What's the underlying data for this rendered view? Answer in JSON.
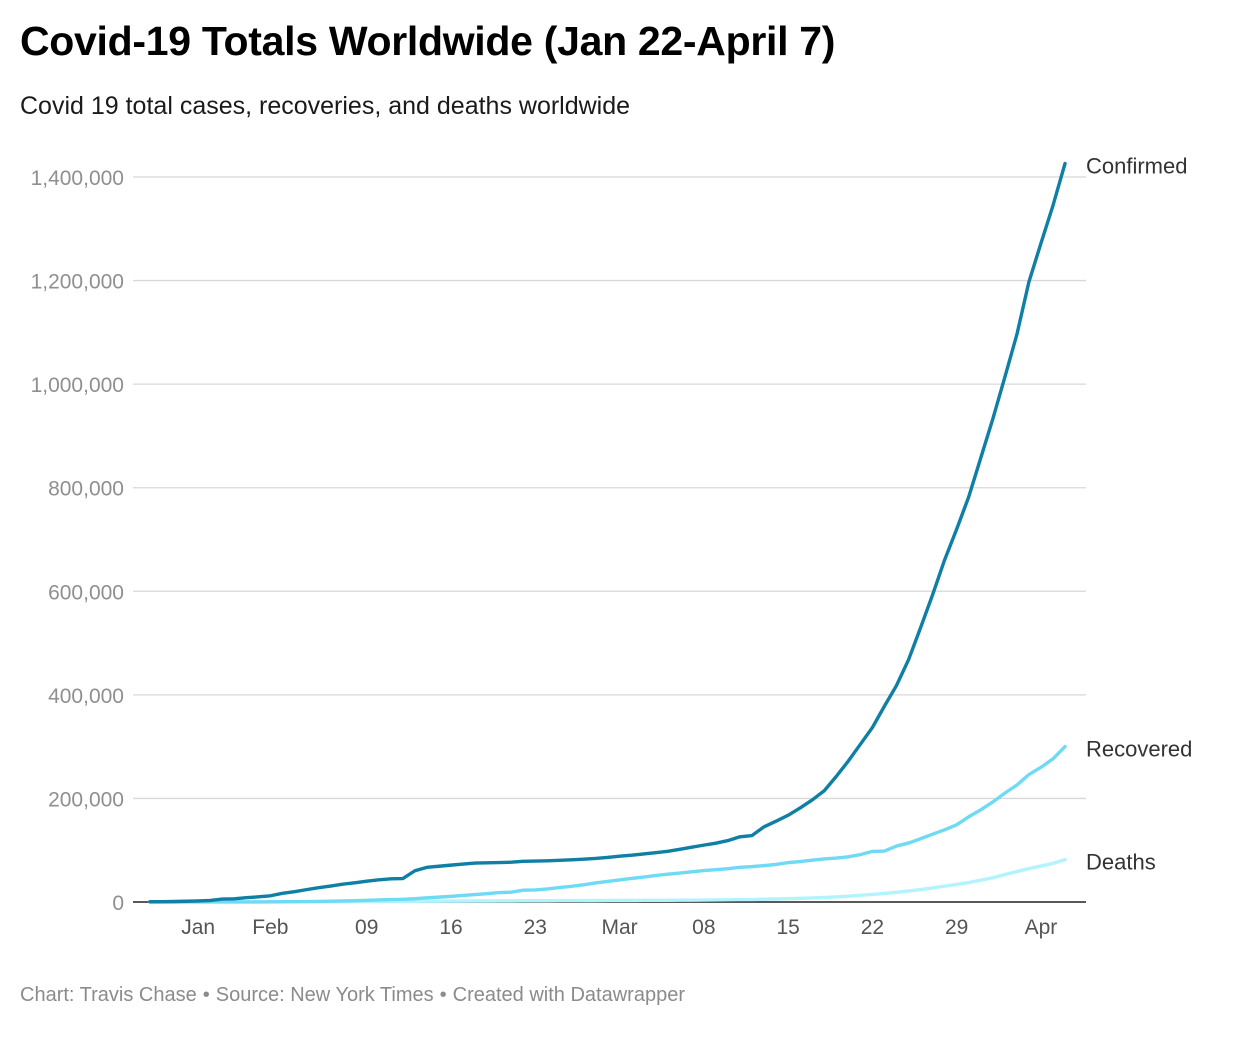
{
  "title": "Covid-19 Totals Worldwide (Jan 22-April 7)",
  "subtitle": "Covid 19 total cases, recoveries, and deaths worldwide",
  "footer": {
    "chart_by": "Chart: Travis Chase",
    "source": "Source: New York Times",
    "created_with": "Created with Datawrapper",
    "separator": "•"
  },
  "colors": {
    "confirmed": "#0f7fa5",
    "recovered": "#6fdaf3",
    "deaths": "#b1f4fd",
    "grid": "#d8d8d8",
    "axis_text": "#8f8f8f",
    "label_text": "#333333"
  },
  "chart_data": {
    "type": "line",
    "title": "Covid-19 Totals Worldwide (Jan 22-April 7)",
    "subtitle": "Covid 19 total cases, recoveries, and deaths worldwide",
    "xlabel": "",
    "ylabel": "",
    "ylim": [
      0,
      1400000
    ],
    "grid": true,
    "legend": "direct labels at line ends (right)",
    "y_ticks": [
      0,
      200000,
      400000,
      600000,
      800000,
      1000000,
      1200000,
      1400000
    ],
    "y_tick_labels": [
      "0",
      "200,000",
      "400,000",
      "600,000",
      "800,000",
      "1,000,000",
      "1,200,000",
      "1,400,000"
    ],
    "x_ticks": [
      {
        "label": "Jan",
        "date": "2020-01-26"
      },
      {
        "label": "Feb",
        "date": "2020-02-01"
      },
      {
        "label": "09",
        "date": "2020-02-09"
      },
      {
        "label": "16",
        "date": "2020-02-16"
      },
      {
        "label": "23",
        "date": "2020-02-23"
      },
      {
        "label": "Mar",
        "date": "2020-03-01"
      },
      {
        "label": "08",
        "date": "2020-03-08"
      },
      {
        "label": "15",
        "date": "2020-03-15"
      },
      {
        "label": "22",
        "date": "2020-03-22"
      },
      {
        "label": "29",
        "date": "2020-03-29"
      },
      {
        "label": "Apr",
        "date": "2020-04-05"
      }
    ],
    "series": [
      {
        "name": "Confirmed",
        "color": "#0f7fa5",
        "points": [
          [
            "2020-01-22",
            555
          ],
          [
            "2020-01-23",
            654
          ],
          [
            "2020-01-24",
            941
          ],
          [
            "2020-01-25",
            1434
          ],
          [
            "2020-01-26",
            2118
          ],
          [
            "2020-01-27",
            2927
          ],
          [
            "2020-01-28",
            5578
          ],
          [
            "2020-01-29",
            6166
          ],
          [
            "2020-01-30",
            8234
          ],
          [
            "2020-01-31",
            9927
          ],
          [
            "2020-02-01",
            12038
          ],
          [
            "2020-02-02",
            16787
          ],
          [
            "2020-02-03",
            19881
          ],
          [
            "2020-02-04",
            23892
          ],
          [
            "2020-02-05",
            27635
          ],
          [
            "2020-02-06",
            30794
          ],
          [
            "2020-02-07",
            34391
          ],
          [
            "2020-02-08",
            37120
          ],
          [
            "2020-02-09",
            40150
          ],
          [
            "2020-02-10",
            42762
          ],
          [
            "2020-02-11",
            44802
          ],
          [
            "2020-02-12",
            45221
          ],
          [
            "2020-02-13",
            60368
          ],
          [
            "2020-02-14",
            66885
          ],
          [
            "2020-02-15",
            69030
          ],
          [
            "2020-02-16",
            71224
          ],
          [
            "2020-02-17",
            73258
          ],
          [
            "2020-02-18",
            75136
          ],
          [
            "2020-02-19",
            75639
          ],
          [
            "2020-02-20",
            76197
          ],
          [
            "2020-02-21",
            76819
          ],
          [
            "2020-02-22",
            78572
          ],
          [
            "2020-02-23",
            78958
          ],
          [
            "2020-02-24",
            79561
          ],
          [
            "2020-02-25",
            80406
          ],
          [
            "2020-02-26",
            81388
          ],
          [
            "2020-02-27",
            82746
          ],
          [
            "2020-02-28",
            84112
          ],
          [
            "2020-02-29",
            86011
          ],
          [
            "2020-03-01",
            88369
          ],
          [
            "2020-03-02",
            90306
          ],
          [
            "2020-03-03",
            92840
          ],
          [
            "2020-03-04",
            95120
          ],
          [
            "2020-03-05",
            97886
          ],
          [
            "2020-03-06",
            101801
          ],
          [
            "2020-03-07",
            105847
          ],
          [
            "2020-03-08",
            109821
          ],
          [
            "2020-03-09",
            113590
          ],
          [
            "2020-03-10",
            118620
          ],
          [
            "2020-03-11",
            125875
          ],
          [
            "2020-03-12",
            128352
          ],
          [
            "2020-03-13",
            145205
          ],
          [
            "2020-03-14",
            156101
          ],
          [
            "2020-03-15",
            167454
          ],
          [
            "2020-03-16",
            181574
          ],
          [
            "2020-03-17",
            197102
          ],
          [
            "2020-03-18",
            214821
          ],
          [
            "2020-03-19",
            242570
          ],
          [
            "2020-03-20",
            272208
          ],
          [
            "2020-03-21",
            304507
          ],
          [
            "2020-03-22",
            336953
          ],
          [
            "2020-03-23",
            378235
          ],
          [
            "2020-03-24",
            418045
          ],
          [
            "2020-03-25",
            467653
          ],
          [
            "2020-03-26",
            529591
          ],
          [
            "2020-03-27",
            593291
          ],
          [
            "2020-03-28",
            660706
          ],
          [
            "2020-03-29",
            720117
          ],
          [
            "2020-03-30",
            782365
          ],
          [
            "2020-03-31",
            857487
          ],
          [
            "2020-04-01",
            932605
          ],
          [
            "2020-04-02",
            1013466
          ],
          [
            "2020-04-03",
            1095917
          ],
          [
            "2020-04-04",
            1197405
          ],
          [
            "2020-04-05",
            1272115
          ],
          [
            "2020-04-06",
            1345048
          ],
          [
            "2020-04-07",
            1426096
          ]
        ]
      },
      {
        "name": "Recovered",
        "color": "#6fdaf3",
        "points": [
          [
            "2020-01-22",
            28
          ],
          [
            "2020-01-23",
            30
          ],
          [
            "2020-01-24",
            36
          ],
          [
            "2020-01-25",
            39
          ],
          [
            "2020-01-26",
            52
          ],
          [
            "2020-01-27",
            61
          ],
          [
            "2020-01-28",
            107
          ],
          [
            "2020-01-29",
            126
          ],
          [
            "2020-01-30",
            143
          ],
          [
            "2020-01-31",
            222
          ],
          [
            "2020-02-01",
            284
          ],
          [
            "2020-02-02",
            472
          ],
          [
            "2020-02-03",
            623
          ],
          [
            "2020-02-04",
            852
          ],
          [
            "2020-02-05",
            1124
          ],
          [
            "2020-02-06",
            1487
          ],
          [
            "2020-02-07",
            2011
          ],
          [
            "2020-02-08",
            2616
          ],
          [
            "2020-02-09",
            3244
          ],
          [
            "2020-02-10",
            3946
          ],
          [
            "2020-02-11",
            4683
          ],
          [
            "2020-02-12",
            5150
          ],
          [
            "2020-02-13",
            6295
          ],
          [
            "2020-02-14",
            8058
          ],
          [
            "2020-02-15",
            9395
          ],
          [
            "2020-02-16",
            10865
          ],
          [
            "2020-02-17",
            12583
          ],
          [
            "2020-02-18",
            14352
          ],
          [
            "2020-02-19",
            16121
          ],
          [
            "2020-02-20",
            18177
          ],
          [
            "2020-02-21",
            18890
          ],
          [
            "2020-02-22",
            22886
          ],
          [
            "2020-02-23",
            23394
          ],
          [
            "2020-02-24",
            25227
          ],
          [
            "2020-02-25",
            27905
          ],
          [
            "2020-02-26",
            30384
          ],
          [
            "2020-02-27",
            33277
          ],
          [
            "2020-02-28",
            36711
          ],
          [
            "2020-02-29",
            39782
          ],
          [
            "2020-03-01",
            42716
          ],
          [
            "2020-03-02",
            45602
          ],
          [
            "2020-03-03",
            48228
          ],
          [
            "2020-03-04",
            51170
          ],
          [
            "2020-03-05",
            53796
          ],
          [
            "2020-03-06",
            55865
          ],
          [
            "2020-03-07",
            58358
          ],
          [
            "2020-03-08",
            60694
          ],
          [
            "2020-03-09",
            62494
          ],
          [
            "2020-03-10",
            64404
          ],
          [
            "2020-03-11",
            67003
          ],
          [
            "2020-03-12",
            68324
          ],
          [
            "2020-03-13",
            70251
          ],
          [
            "2020-03-14",
            72624
          ],
          [
            "2020-03-15",
            76034
          ],
          [
            "2020-03-16",
            78088
          ],
          [
            "2020-03-17",
            80840
          ],
          [
            "2020-03-18",
            83207
          ],
          [
            "2020-03-19",
            84854
          ],
          [
            "2020-03-20",
            87256
          ],
          [
            "2020-03-21",
            91499
          ],
          [
            "2020-03-22",
            97704
          ],
          [
            "2020-03-23",
            98327
          ],
          [
            "2020-03-24",
            107988
          ],
          [
            "2020-03-25",
            113770
          ],
          [
            "2020-03-26",
            122150
          ],
          [
            "2020-03-27",
            130915
          ],
          [
            "2020-03-28",
            139415
          ],
          [
            "2020-03-29",
            149082
          ],
          [
            "2020-03-30",
            164566
          ],
          [
            "2020-03-31",
            178034
          ],
          [
            "2020-04-01",
            193177
          ],
          [
            "2020-04-02",
            210263
          ],
          [
            "2020-04-03",
            225796
          ],
          [
            "2020-04-04",
            246152
          ],
          [
            "2020-04-05",
            260012
          ],
          [
            "2020-04-06",
            276515
          ],
          [
            "2020-04-07",
            300054
          ]
        ]
      },
      {
        "name": "Deaths",
        "color": "#b1f4fd",
        "points": [
          [
            "2020-01-22",
            17
          ],
          [
            "2020-01-23",
            18
          ],
          [
            "2020-01-24",
            26
          ],
          [
            "2020-01-25",
            42
          ],
          [
            "2020-01-26",
            56
          ],
          [
            "2020-01-27",
            82
          ],
          [
            "2020-01-28",
            131
          ],
          [
            "2020-01-29",
            133
          ],
          [
            "2020-01-30",
            171
          ],
          [
            "2020-01-31",
            213
          ],
          [
            "2020-02-01",
            259
          ],
          [
            "2020-02-02",
            362
          ],
          [
            "2020-02-03",
            426
          ],
          [
            "2020-02-04",
            492
          ],
          [
            "2020-02-05",
            564
          ],
          [
            "2020-02-06",
            634
          ],
          [
            "2020-02-07",
            719
          ],
          [
            "2020-02-08",
            806
          ],
          [
            "2020-02-09",
            906
          ],
          [
            "2020-02-10",
            1013
          ],
          [
            "2020-02-11",
            1113
          ],
          [
            "2020-02-12",
            1118
          ],
          [
            "2020-02-13",
            1371
          ],
          [
            "2020-02-14",
            1523
          ],
          [
            "2020-02-15",
            1666
          ],
          [
            "2020-02-16",
            1770
          ],
          [
            "2020-02-17",
            1868
          ],
          [
            "2020-02-18",
            2007
          ],
          [
            "2020-02-19",
            2122
          ],
          [
            "2020-02-20",
            2247
          ],
          [
            "2020-02-21",
            2251
          ],
          [
            "2020-02-22",
            2458
          ],
          [
            "2020-02-23",
            2469
          ],
          [
            "2020-02-24",
            2629
          ],
          [
            "2020-02-25",
            2708
          ],
          [
            "2020-02-26",
            2770
          ],
          [
            "2020-02-27",
            2814
          ],
          [
            "2020-02-28",
            2872
          ],
          [
            "2020-02-29",
            2941
          ],
          [
            "2020-03-01",
            2996
          ],
          [
            "2020-03-02",
            3085
          ],
          [
            "2020-03-03",
            3160
          ],
          [
            "2020-03-04",
            3254
          ],
          [
            "2020-03-05",
            3348
          ],
          [
            "2020-03-06",
            3460
          ],
          [
            "2020-03-07",
            3558
          ],
          [
            "2020-03-08",
            3803
          ],
          [
            "2020-03-09",
            3996
          ],
          [
            "2020-03-10",
            4262
          ],
          [
            "2020-03-11",
            4615
          ],
          [
            "2020-03-12",
            4720
          ],
          [
            "2020-03-13",
            5404
          ],
          [
            "2020-03-14",
            5819
          ],
          [
            "2020-03-15",
            6440
          ],
          [
            "2020-03-16",
            7126
          ],
          [
            "2020-03-17",
            7905
          ],
          [
            "2020-03-18",
            8733
          ],
          [
            "2020-03-19",
            9867
          ],
          [
            "2020-03-20",
            11299
          ],
          [
            "2020-03-21",
            12973
          ],
          [
            "2020-03-22",
            14623
          ],
          [
            "2020-03-23",
            16497
          ],
          [
            "2020-03-24",
            18615
          ],
          [
            "2020-03-25",
            21181
          ],
          [
            "2020-03-26",
            23970
          ],
          [
            "2020-03-27",
            27198
          ],
          [
            "2020-03-28",
            30652
          ],
          [
            "2020-03-29",
            33925
          ],
          [
            "2020-03-30",
            37582
          ],
          [
            "2020-03-31",
            42107
          ],
          [
            "2020-04-01",
            46809
          ],
          [
            "2020-04-02",
            52983
          ],
          [
            "2020-04-03",
            58787
          ],
          [
            "2020-04-04",
            64606
          ],
          [
            "2020-04-05",
            69374
          ],
          [
            "2020-04-06",
            74565
          ],
          [
            "2020-04-07",
            81865
          ]
        ]
      }
    ]
  }
}
